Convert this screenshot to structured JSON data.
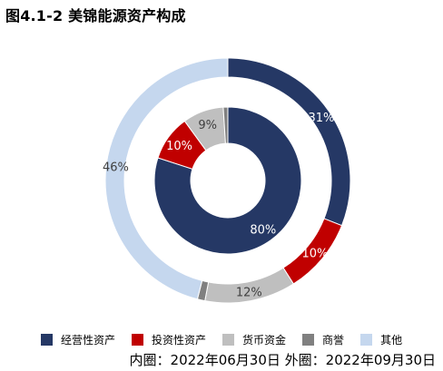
{
  "title": "图4.1-2 美锦能源资产构成",
  "footnote": "内圈：2022年06月30日 外圈：2022年09月30日",
  "chart_data": {
    "type": "pie",
    "subtype": "double-donut",
    "categories": [
      "经营性资产",
      "投资性资产",
      "货币资金",
      "商誉",
      "其他"
    ],
    "colors": [
      "#253865",
      "#C00000",
      "#BFBFBF",
      "#808080",
      "#C5D7EE"
    ],
    "series": [
      {
        "ring": "inner",
        "values": [
          80,
          10,
          9,
          1,
          0
        ],
        "labels": [
          "80%",
          "10%",
          "9%",
          "",
          ""
        ]
      },
      {
        "ring": "outer",
        "values": [
          31,
          10,
          12,
          1,
          46
        ],
        "labels": [
          "31%",
          "10%",
          "12%",
          "",
          "46%"
        ]
      }
    ],
    "legend_position": "bottom"
  }
}
